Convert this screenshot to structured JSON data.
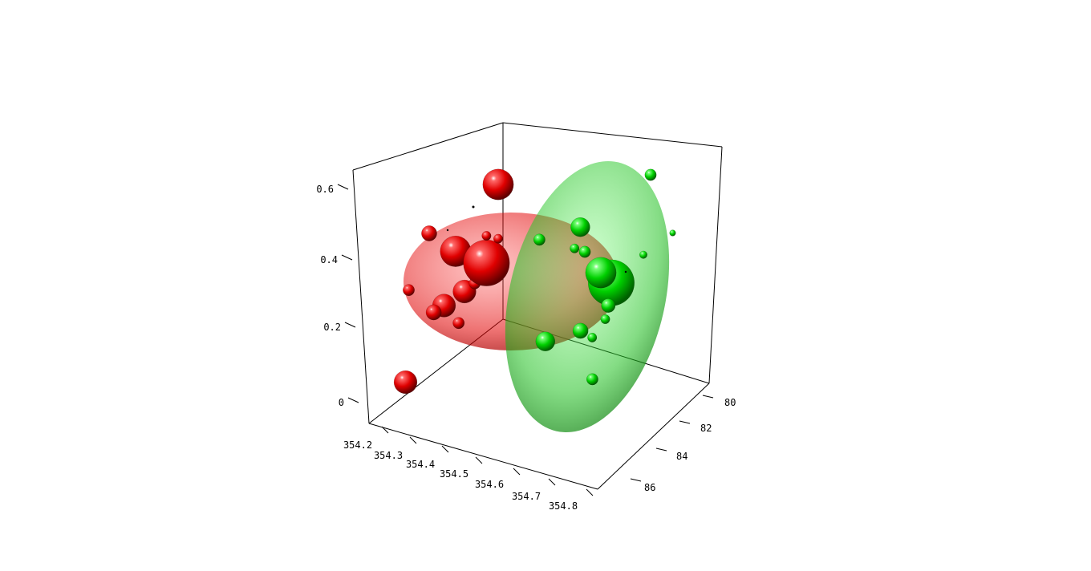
{
  "chart_data": {
    "type": "scatter",
    "subtype": "3d-bubble-with-ellipsoids",
    "title": "",
    "xlabel": "",
    "ylabel": "",
    "zlabel": "",
    "grid": false,
    "legend": "none",
    "axes": {
      "x": {
        "ticks": [
          "354.2",
          "354.3",
          "354.4",
          "354.5",
          "354.6",
          "354.7",
          "354.8"
        ],
        "range": [
          354.2,
          354.8
        ]
      },
      "y": {
        "ticks": [
          "80",
          "82",
          "84",
          "86"
        ],
        "range": [
          80,
          86
        ],
        "reversed": true
      },
      "z": {
        "ticks": [
          "0",
          "0.2",
          "0.4",
          "0.6"
        ],
        "range": [
          0,
          0.6
        ]
      }
    },
    "colors": {
      "red": "#ff0000",
      "green": "#00e000"
    },
    "series": [
      {
        "color": "#ff0000",
        "ellipsoid": {
          "center": [
            354.37,
            83.0,
            0.3
          ],
          "color": "#ff0000"
        },
        "points": [
          {
            "x": 354.21,
            "y": 83.0,
            "z": 0.09,
            "size": 3
          },
          {
            "x": 354.28,
            "y": 83.5,
            "z": 0.48,
            "size": 2
          },
          {
            "x": 354.33,
            "y": 83.2,
            "z": 0.43,
            "size": 4
          },
          {
            "x": 354.42,
            "y": 83.0,
            "z": 0.6,
            "size": 4
          },
          {
            "x": 354.4,
            "y": 83.2,
            "z": 0.4,
            "size": 6
          },
          {
            "x": 354.36,
            "y": 83.5,
            "z": 0.33,
            "size": 3
          },
          {
            "x": 354.33,
            "y": 84.0,
            "z": 0.3,
            "size": 3
          },
          {
            "x": 354.3,
            "y": 83.8,
            "z": 0.28,
            "size": 2
          },
          {
            "x": 354.25,
            "y": 84.0,
            "z": 0.34,
            "size": 1.5
          },
          {
            "x": 354.38,
            "y": 83.4,
            "z": 0.35,
            "size": 1.5
          },
          {
            "x": 354.37,
            "y": 83.5,
            "z": 0.42,
            "size": 1.2
          },
          {
            "x": 354.4,
            "y": 83.2,
            "z": 0.47,
            "size": 1.2
          },
          {
            "x": 354.42,
            "y": 83.0,
            "z": 0.46,
            "size": 1.2
          },
          {
            "x": 354.35,
            "y": 83.6,
            "z": 0.25,
            "size": 1.5
          }
        ]
      },
      {
        "color": "#00e000",
        "ellipsoid": {
          "center": [
            354.55,
            82.5,
            0.3
          ],
          "color": "#00e000"
        },
        "points": [
          {
            "x": 354.62,
            "y": 82.0,
            "z": 0.36,
            "size": 4
          },
          {
            "x": 354.66,
            "y": 82.5,
            "z": 0.34,
            "size": 6
          },
          {
            "x": 354.58,
            "y": 82.2,
            "z": 0.48,
            "size": 2.5
          },
          {
            "x": 354.54,
            "y": 83.4,
            "z": 0.2,
            "size": 2.5
          },
          {
            "x": 354.6,
            "y": 82.8,
            "z": 0.22,
            "size": 2
          },
          {
            "x": 354.7,
            "y": 81.0,
            "z": 0.6,
            "size": 1.5
          },
          {
            "x": 354.64,
            "y": 83.2,
            "z": 0.1,
            "size": 1.5
          },
          {
            "x": 354.65,
            "y": 82.4,
            "z": 0.28,
            "size": 1.8
          },
          {
            "x": 354.7,
            "y": 81.5,
            "z": 0.4,
            "size": 1.0
          },
          {
            "x": 354.75,
            "y": 81.0,
            "z": 0.45,
            "size": 0.8
          },
          {
            "x": 354.6,
            "y": 82.5,
            "z": 0.42,
            "size": 1.5
          },
          {
            "x": 354.58,
            "y": 82.6,
            "z": 0.43,
            "size": 1.2
          },
          {
            "x": 354.52,
            "y": 83.2,
            "z": 0.46,
            "size": 1.5
          },
          {
            "x": 354.62,
            "y": 82.6,
            "z": 0.2,
            "size": 1.2
          },
          {
            "x": 354.63,
            "y": 82.0,
            "z": 0.24,
            "size": 1.2
          }
        ]
      }
    ]
  }
}
